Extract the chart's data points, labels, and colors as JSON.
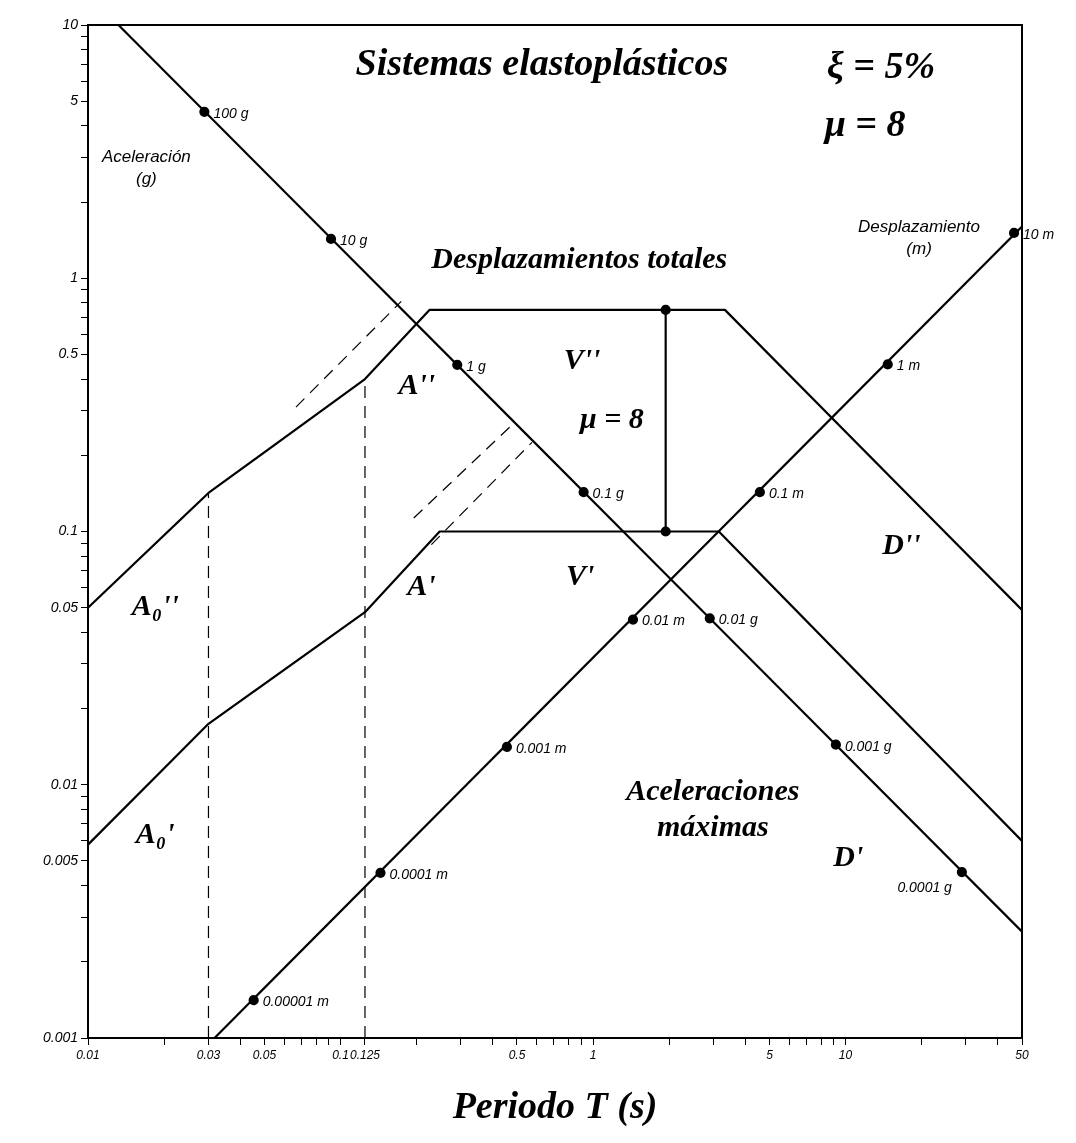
{
  "chart_data": {
    "type": "line",
    "title": "Sistemas elastoplásticos",
    "xlabel": "Periodo T (s)",
    "log": "xy",
    "grid": false,
    "legend": false,
    "marker": "none",
    "xlim": [
      0.01,
      50
    ],
    "xticks": [
      0.01,
      {
        "value": 0.02,
        "label": null
      },
      0.03,
      {
        "value": 0.04,
        "label": null
      },
      0.05,
      {
        "value": 0.06,
        "label": null
      },
      {
        "value": 0.07,
        "label": null
      },
      {
        "value": 0.08,
        "label": null
      },
      {
        "value": 0.09,
        "label": null
      },
      0.1,
      0.125,
      {
        "value": 0.2,
        "label": null
      },
      {
        "value": 0.3,
        "label": null
      },
      {
        "value": 0.4,
        "label": null
      },
      0.5,
      {
        "value": 0.6,
        "label": null
      },
      {
        "value": 0.7,
        "label": null
      },
      {
        "value": 0.8,
        "label": null
      },
      {
        "value": 0.9,
        "label": null
      },
      1,
      {
        "value": 2,
        "label": null
      },
      {
        "value": 3,
        "label": null
      },
      {
        "value": 4,
        "label": null
      },
      5,
      {
        "value": 6,
        "label": null
      },
      {
        "value": 7,
        "label": null
      },
      {
        "value": 8,
        "label": null
      },
      {
        "value": 9,
        "label": null
      },
      10,
      {
        "value": 20,
        "label": null
      },
      {
        "value": 30,
        "label": null
      },
      {
        "value": 40,
        "label": null
      },
      50
    ],
    "ylim": [
      0.001,
      10
    ],
    "yticks": [
      0.001,
      {
        "value": 0.002,
        "label": null
      },
      {
        "value": 0.003,
        "label": null
      },
      {
        "value": 0.004,
        "label": null
      },
      0.005,
      {
        "value": 0.006,
        "label": null
      },
      {
        "value": 0.007,
        "label": null
      },
      {
        "value": 0.008,
        "label": null
      },
      {
        "value": 0.009,
        "label": null
      },
      0.01,
      {
        "value": 0.02,
        "label": null
      },
      {
        "value": 0.03,
        "label": null
      },
      {
        "value": 0.04,
        "label": null
      },
      0.05,
      {
        "value": 0.06,
        "label": null
      },
      {
        "value": 0.07,
        "label": null
      },
      {
        "value": 0.08,
        "label": null
      },
      {
        "value": 0.09,
        "label": null
      },
      0.1,
      {
        "value": 0.2,
        "label": null
      },
      {
        "value": 0.3,
        "label": null
      },
      {
        "value": 0.4,
        "label": null
      },
      0.5,
      {
        "value": 0.6,
        "label": null
      },
      {
        "value": 0.7,
        "label": null
      },
      {
        "value": 0.8,
        "label": null
      },
      {
        "value": 0.9,
        "label": null
      },
      1,
      {
        "value": 2,
        "label": null
      },
      {
        "value": 3,
        "label": null
      },
      {
        "value": 4,
        "label": null
      },
      5,
      {
        "value": 6,
        "label": null
      },
      {
        "value": 7,
        "label": null
      },
      {
        "value": 8,
        "label": null
      },
      {
        "value": 9,
        "label": null
      },
      10
    ],
    "series": [
      {
        "type": "line",
        "color": "#000000",
        "x": [
          0.01,
          0.03,
          0.125,
          0.225,
          3.33,
          50
        ],
        "values": [
          0.05,
          0.142,
          0.4,
          0.75,
          0.75,
          0.049
        ]
      },
      {
        "type": "line",
        "color": "#000000",
        "x": [
          0.01,
          0.03,
          0.125,
          0.247,
          3.15,
          50
        ],
        "values": [
          0.0058,
          0.0174,
          0.048,
          0.1,
          0.1,
          0.006
        ]
      },
      {
        "type": "line",
        "color": "#000000",
        "x": [
          0.0132,
          50
        ],
        "values": [
          10,
          0.00263
        ]
      },
      {
        "type": "line",
        "color": "#000000",
        "x": [
          0.0317,
          50
        ],
        "values": [
          0.001,
          1.6
        ]
      },
      {
        "type": "line",
        "color": "#000000",
        "line_style": "dashed",
        "x": [
          0.03,
          0.03
        ],
        "values": [
          0.001,
          0.142
        ]
      },
      {
        "type": "line",
        "color": "#000000",
        "line_style": "dashed",
        "x": [
          0.125,
          0.125
        ],
        "values": [
          0.001,
          0.4
        ]
      },
      {
        "type": "line",
        "color": "#000000",
        "line_style": "dashed",
        "x": [
          0.0666,
          0.174
        ],
        "values": [
          0.31,
          0.81
        ]
      },
      {
        "type": "line",
        "color": "#000000",
        "line_style": "dashed",
        "x": [
          0.195,
          0.477
        ],
        "values": [
          0.113,
          0.263
        ]
      },
      {
        "type": "line",
        "color": "#000000",
        "line_style": "dashed",
        "x": [
          0.229,
          0.573
        ],
        "values": [
          0.0887,
          0.225
        ]
      },
      {
        "type": "line",
        "color": "#000000",
        "marker": "circle",
        "x": [
          1.94,
          1.94
        ],
        "values": [
          0.75,
          0.1
        ]
      },
      {
        "type": "scatter",
        "name": "Aceleración\n(g)",
        "color": "#000000",
        "marker": "circle",
        "x": [
          0.0289,
          0.0917,
          0.29,
          0.918,
          2.9,
          9.16,
          28.9
        ],
        "values": [
          4.54,
          1.43,
          0.455,
          0.143,
          0.0454,
          0.0144,
          0.00452
        ]
      },
      {
        "type": "scatter",
        "name": "Desplazamiento\n(m)",
        "color": "#000000",
        "marker": "circle",
        "x": [
          46.5,
          14.7,
          4.58,
          1.44,
          0.456,
          0.144,
          0.0453
        ],
        "values": [
          1.51,
          0.457,
          0.143,
          0.0449,
          0.0141,
          0.00449,
          0.00141
        ]
      }
    ],
    "annotations": [
      "ξ = 5%",
      "μ = 8",
      "Desplazamientos totales",
      "A''",
      "V''",
      "μ = 8",
      "D''",
      "A'",
      "V'",
      "A₀''",
      "A₀'",
      "Aceleraciones\nmáximas",
      "D'",
      {
        "text": "100 g",
        "x": 0.0289,
        "y": 4.54
      },
      {
        "text": "10 g",
        "x": 0.0917,
        "y": 1.43
      },
      {
        "text": "1 g",
        "x": 0.29,
        "y": 0.455
      },
      {
        "text": "0.1 g",
        "x": 0.918,
        "y": 0.143
      },
      {
        "text": "0.01 g",
        "x": 2.9,
        "y": 0.0454
      },
      {
        "text": "0.001 g",
        "x": 9.16,
        "y": 0.0144
      },
      {
        "text": "0.0001 g",
        "x": 28.9,
        "y": 0.00452
      },
      {
        "text": "10 m",
        "x": 46.5,
        "y": 1.51
      },
      {
        "text": "1 m",
        "x": 14.7,
        "y": 0.457
      },
      {
        "text": "0.1 m",
        "x": 4.58,
        "y": 0.143
      },
      {
        "text": "0.01 m",
        "x": 1.44,
        "y": 0.0449
      },
      {
        "text": "0.001 m",
        "x": 0.456,
        "y": 0.0141
      },
      {
        "text": "0.0001 m",
        "x": 0.144,
        "y": 0.00449
      },
      {
        "text": "0.00001 m",
        "x": 0.0453,
        "y": 0.00141
      }
    ]
  }
}
